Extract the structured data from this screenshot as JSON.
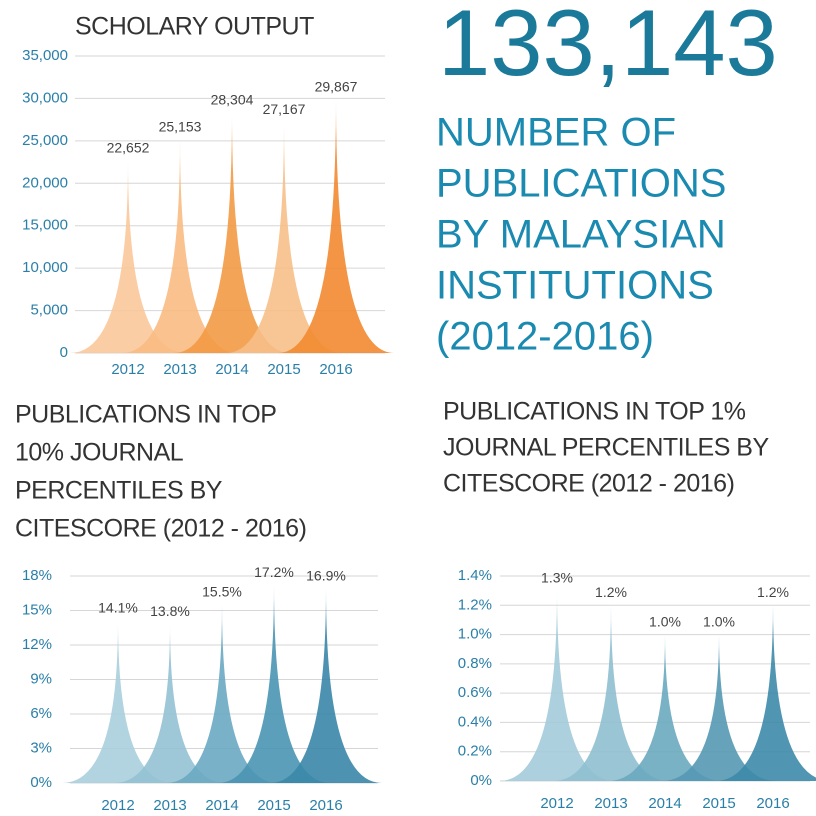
{
  "headline": {
    "number": "133,143",
    "lines": [
      "NUMBER OF",
      "PUBLICATIONS",
      "BY MALAYSIAN",
      "INSTITUTIONS",
      "(2012-2016)"
    ]
  },
  "chart_data": [
    {
      "type": "spike",
      "title_lines": [
        "SCHOLARY OUTPUT"
      ],
      "categories": [
        "2012",
        "2013",
        "2014",
        "2015",
        "2016"
      ],
      "values": [
        22652,
        25153,
        28304,
        27167,
        29867
      ],
      "value_labels": [
        "22,652",
        "25,153",
        "28,304",
        "27,167",
        "29,867"
      ],
      "colors": [
        "#f9c89a",
        "#f8bb82",
        "#f39a45",
        "#f7bf88",
        "#f28a30"
      ],
      "ylim": [
        0,
        35000
      ],
      "yticks": [
        0,
        {
          "value": 5000,
          "label": "5,000"
        },
        {
          "value": 10000,
          "label": "10,000"
        },
        {
          "value": 15000,
          "label": "15,000"
        },
        {
          "value": 20000,
          "label": "20,000"
        },
        {
          "value": 25000,
          "label": "25,000"
        },
        {
          "value": 30000,
          "label": "30,000"
        },
        {
          "value": 35000,
          "label": "35,000"
        }
      ],
      "grid": true
    },
    {
      "type": "spike",
      "title_lines": [
        "PUBLICATIONS IN TOP",
        "10% JOURNAL",
        "PERCENTILES BY",
        "CITESCORE (2012 - 2016)"
      ],
      "categories": [
        "2012",
        "2013",
        "2014",
        "2015",
        "2016"
      ],
      "values": [
        14.1,
        13.8,
        15.5,
        17.2,
        16.9
      ],
      "value_labels": [
        "14.1%",
        "13.8%",
        "15.5%",
        "17.2%",
        "16.9%"
      ],
      "colors": [
        "#a9cfdd",
        "#93c2d4",
        "#6aa9c2",
        "#4a95b3",
        "#3a87a8"
      ],
      "ylim": [
        0,
        18
      ],
      "yticks": [
        {
          "value": 0,
          "label": "0%"
        },
        {
          "value": 3,
          "label": "3%"
        },
        {
          "value": 6,
          "label": "6%"
        },
        {
          "value": 9,
          "label": "9%"
        },
        {
          "value": 12,
          "label": "12%"
        },
        {
          "value": 15,
          "label": "15%"
        },
        {
          "value": 18,
          "label": "18%"
        }
      ],
      "grid": true
    },
    {
      "type": "spike",
      "title_lines": [
        "PUBLICATIONS IN TOP 1%",
        "JOURNAL PERCENTILES BY",
        "CITESCORE (2012 - 2016)"
      ],
      "categories": [
        "2012",
        "2013",
        "2014",
        "2015",
        "2016"
      ],
      "values": [
        1.3,
        1.2,
        1.0,
        1.0,
        1.2
      ],
      "value_labels": [
        "1.3%",
        "1.2%",
        "1.0%",
        "1.0%",
        "1.2%"
      ],
      "colors": [
        "#a3cbd9",
        "#8fbfd0",
        "#6aa8bf",
        "#5599b4",
        "#3d89a9"
      ],
      "ylim": [
        0,
        1.4
      ],
      "yticks": [
        {
          "value": 0,
          "label": "0%"
        },
        {
          "value": 0.2,
          "label": "0.2%"
        },
        {
          "value": 0.4,
          "label": "0.4%"
        },
        {
          "value": 0.6,
          "label": "0.6%"
        },
        {
          "value": 0.8,
          "label": "0.8%"
        },
        {
          "value": 1.0,
          "label": "1.0%"
        },
        {
          "value": 1.2,
          "label": "1.2%"
        },
        {
          "value": 1.4,
          "label": "1.4%"
        }
      ],
      "grid": true
    }
  ]
}
